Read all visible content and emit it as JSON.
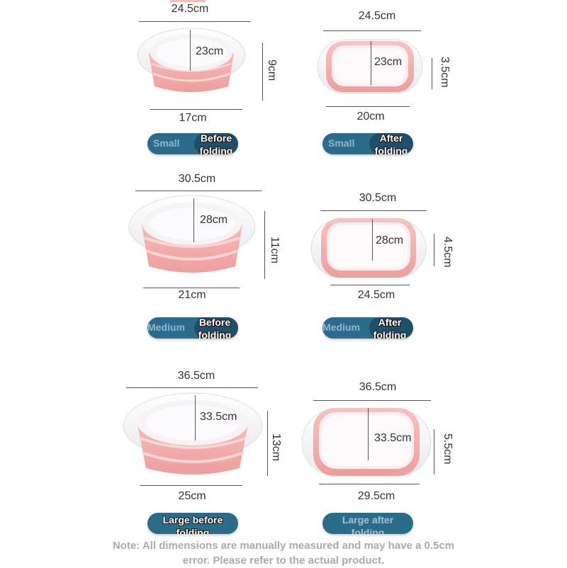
{
  "rows": [
    {
      "before": {
        "width_top": "24.5cm",
        "depth": "23cm",
        "height": "9cm",
        "width_bottom": "17cm"
      },
      "after": {
        "width_top": "24.5cm",
        "depth": "23cm",
        "height": "3.5cm",
        "width_bottom": "20cm"
      },
      "badge_before": {
        "size": "Small",
        "state_l1": "Before",
        "state_l2": "folding"
      },
      "badge_after": {
        "size": "Small",
        "state_l1": "After",
        "state_l2": "folding"
      }
    },
    {
      "before": {
        "width_top": "30.5cm",
        "depth": "28cm",
        "height": "11cm",
        "width_bottom": "21cm"
      },
      "after": {
        "width_top": "30.5cm",
        "depth": "28cm",
        "height": "4.5cm",
        "width_bottom": "24.5cm"
      },
      "badge_before": {
        "size": "Medium",
        "state_l1": "Before",
        "state_l2": "folding"
      },
      "badge_after": {
        "size": "Medium",
        "state_l1": "After",
        "state_l2": "folding"
      }
    },
    {
      "before": {
        "width_top": "36.5cm",
        "depth": "33.5cm",
        "height": "13cm",
        "width_bottom": "25cm"
      },
      "after": {
        "width_top": "36.5cm",
        "depth": "33.5cm",
        "height": "5.5cm",
        "width_bottom": "29.5cm"
      },
      "badge_before": {
        "l1": "Large before",
        "l2": "folding"
      },
      "badge_after": {
        "l1": "Large after",
        "l2": "folding"
      }
    }
  ],
  "note": {
    "line1": "Note: All dimensions are manually measured and may have a 0.5cm",
    "line2": "error. Please refer to the actual product."
  },
  "colors": {
    "pink": "#f2a8a6",
    "pink_light": "#f8cfcc",
    "white_rim": "#ffffff",
    "badge": "#2b6c8a",
    "badge_dark": "#1f4f6a"
  },
  "icons": [
    "basin-before-icon",
    "basin-after-icon"
  ]
}
